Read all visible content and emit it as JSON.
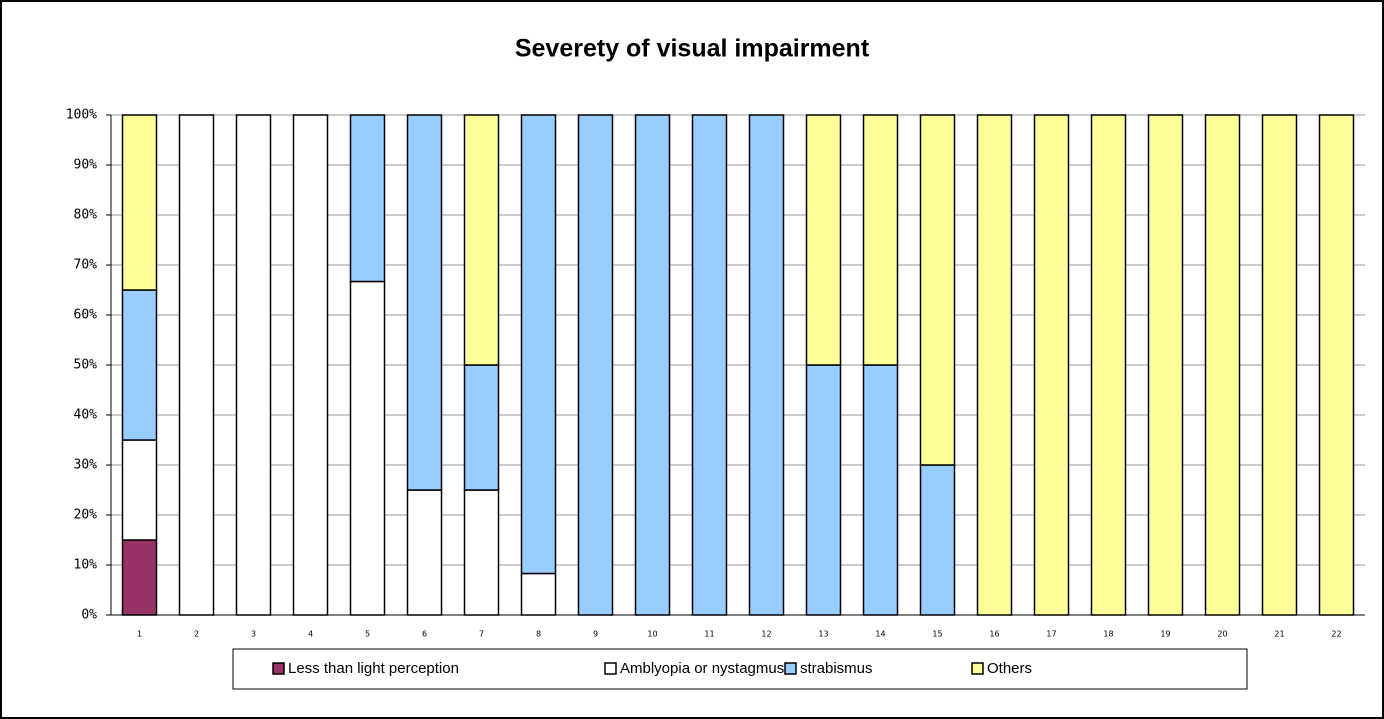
{
  "chart_data": {
    "type": "stacked_bar_100",
    "title": "Severety of visual impairment",
    "categories": [
      "1",
      "2",
      "3",
      "4",
      "5",
      "6",
      "7",
      "8",
      "9",
      "10",
      "11",
      "12",
      "13",
      "14",
      "15",
      "16",
      "17",
      "18",
      "19",
      "20",
      "21",
      "22"
    ],
    "series": [
      {
        "name": "Less than light perception",
        "color": "#993366",
        "values": [
          15,
          0,
          0,
          0,
          0,
          0,
          0,
          0,
          0,
          0,
          0,
          0,
          0,
          0,
          0,
          0,
          0,
          0,
          0,
          0,
          0,
          0
        ]
      },
      {
        "name": "Amblyopia or nystagmus",
        "color": "#ffffff",
        "values": [
          20,
          100,
          100,
          100,
          66.7,
          25,
          25,
          8.3,
          0,
          0,
          0,
          0,
          0,
          0,
          0,
          0,
          0,
          0,
          0,
          0,
          0,
          0
        ]
      },
      {
        "name": "strabismus",
        "color": "#99ccff",
        "values": [
          30,
          0,
          0,
          0,
          33.3,
          75,
          25,
          91.7,
          100,
          100,
          100,
          100,
          50,
          50,
          30,
          0,
          0,
          0,
          0,
          0,
          0,
          0
        ]
      },
      {
        "name": "Others",
        "color": "#ffff99",
        "values": [
          35,
          0,
          0,
          0,
          0,
          0,
          50,
          0,
          0,
          0,
          0,
          0,
          50,
          50,
          70,
          100,
          100,
          100,
          100,
          100,
          100,
          100
        ]
      }
    ],
    "ylim": [
      0,
      100
    ],
    "yticks": [
      {
        "value": 0,
        "label": "0%"
      },
      {
        "value": 10,
        "label": "10%"
      },
      {
        "value": 20,
        "label": "20%"
      },
      {
        "value": 30,
        "label": "30%"
      },
      {
        "value": 40,
        "label": "40%"
      },
      {
        "value": 50,
        "label": "50%"
      },
      {
        "value": 60,
        "label": "60%"
      },
      {
        "value": 70,
        "label": "70%"
      },
      {
        "value": 80,
        "label": "80%"
      },
      {
        "value": 90,
        "label": "90%"
      },
      {
        "value": 100,
        "label": "100%"
      }
    ],
    "grid": true,
    "legend": "bottom"
  }
}
